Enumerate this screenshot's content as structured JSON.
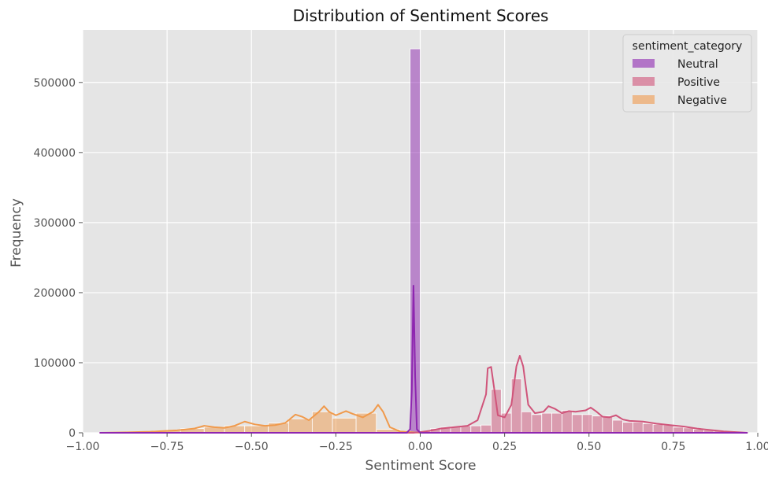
{
  "chart_data": {
    "type": "bar",
    "title": "Distribution of Sentiment Scores",
    "xlabel": "Sentiment Score",
    "ylabel": "Frequency",
    "xlim": [
      -1.0,
      1.0
    ],
    "ylim": [
      0,
      575000
    ],
    "xticks": [
      -1.0,
      -0.75,
      -0.5,
      -0.25,
      0.0,
      0.25,
      0.5,
      0.75,
      1.0
    ],
    "xtick_labels": [
      "−1.00",
      "−0.75",
      "−0.50",
      "−0.25",
      "0.00",
      "0.25",
      "0.50",
      "0.75",
      "1.00"
    ],
    "yticks": [
      0,
      100000,
      200000,
      300000,
      400000,
      500000
    ],
    "ytick_labels": [
      "0",
      "100000",
      "200000",
      "300000",
      "400000",
      "500000"
    ],
    "grid": true,
    "background": "#e5e5e5",
    "legend": {
      "title": "sentiment_category",
      "placement": "top-right",
      "entries": [
        "Neutral",
        "Positive",
        "Negative"
      ]
    },
    "series": [
      {
        "name": "Neutral",
        "color": "#8e26b0",
        "bars": [
          {
            "x0": -0.03,
            "x1": 0.0,
            "value": 548000
          }
        ],
        "kde": [
          [
            -0.95,
            0
          ],
          [
            -0.1,
            0
          ],
          [
            -0.04,
            0
          ],
          [
            -0.03,
            5000
          ],
          [
            -0.025,
            60000
          ],
          [
            -0.02,
            210000
          ],
          [
            -0.015,
            80000
          ],
          [
            -0.01,
            5000
          ],
          [
            0.0,
            0
          ],
          [
            0.97,
            0
          ]
        ]
      },
      {
        "name": "Positive",
        "color": "#d0547a",
        "bars": [
          {
            "x0": 0.0,
            "x1": 0.03,
            "value": 2000
          },
          {
            "x0": 0.03,
            "x1": 0.06,
            "value": 6000
          },
          {
            "x0": 0.06,
            "x1": 0.09,
            "value": 8000
          },
          {
            "x0": 0.09,
            "x1": 0.12,
            "value": 9000
          },
          {
            "x0": 0.12,
            "x1": 0.15,
            "value": 10000
          },
          {
            "x0": 0.15,
            "x1": 0.18,
            "value": 10000
          },
          {
            "x0": 0.18,
            "x1": 0.21,
            "value": 11000
          },
          {
            "x0": 0.21,
            "x1": 0.24,
            "value": 62000
          },
          {
            "x0": 0.24,
            "x1": 0.27,
            "value": 28000
          },
          {
            "x0": 0.27,
            "x1": 0.3,
            "value": 77000
          },
          {
            "x0": 0.3,
            "x1": 0.33,
            "value": 30000
          },
          {
            "x0": 0.33,
            "x1": 0.36,
            "value": 26000
          },
          {
            "x0": 0.36,
            "x1": 0.39,
            "value": 28000
          },
          {
            "x0": 0.39,
            "x1": 0.42,
            "value": 28000
          },
          {
            "x0": 0.42,
            "x1": 0.45,
            "value": 32000
          },
          {
            "x0": 0.45,
            "x1": 0.48,
            "value": 26000
          },
          {
            "x0": 0.48,
            "x1": 0.51,
            "value": 26000
          },
          {
            "x0": 0.51,
            "x1": 0.54,
            "value": 24000
          },
          {
            "x0": 0.54,
            "x1": 0.57,
            "value": 24000
          },
          {
            "x0": 0.57,
            "x1": 0.6,
            "value": 18000
          },
          {
            "x0": 0.6,
            "x1": 0.63,
            "value": 15000
          },
          {
            "x0": 0.63,
            "x1": 0.66,
            "value": 15000
          },
          {
            "x0": 0.66,
            "x1": 0.69,
            "value": 13000
          },
          {
            "x0": 0.69,
            "x1": 0.72,
            "value": 12000
          },
          {
            "x0": 0.72,
            "x1": 0.75,
            "value": 11000
          },
          {
            "x0": 0.75,
            "x1": 0.78,
            "value": 8000
          },
          {
            "x0": 0.78,
            "x1": 0.81,
            "value": 7000
          },
          {
            "x0": 0.81,
            "x1": 0.84,
            "value": 5000
          },
          {
            "x0": 0.84,
            "x1": 0.87,
            "value": 4000
          },
          {
            "x0": 0.87,
            "x1": 0.9,
            "value": 3000
          },
          {
            "x0": 0.9,
            "x1": 0.93,
            "value": 2000
          },
          {
            "x0": 0.93,
            "x1": 0.97,
            "value": 1000
          }
        ],
        "kde": [
          [
            -0.95,
            0
          ],
          [
            -0.02,
            0
          ],
          [
            0.0,
            1000
          ],
          [
            0.03,
            3000
          ],
          [
            0.06,
            6000
          ],
          [
            0.1,
            8000
          ],
          [
            0.14,
            10000
          ],
          [
            0.17,
            18000
          ],
          [
            0.195,
            55000
          ],
          [
            0.2,
            92000
          ],
          [
            0.21,
            94000
          ],
          [
            0.22,
            60000
          ],
          [
            0.23,
            25000
          ],
          [
            0.25,
            22000
          ],
          [
            0.27,
            40000
          ],
          [
            0.285,
            95000
          ],
          [
            0.295,
            110000
          ],
          [
            0.305,
            95000
          ],
          [
            0.32,
            40000
          ],
          [
            0.34,
            28000
          ],
          [
            0.365,
            30000
          ],
          [
            0.38,
            38000
          ],
          [
            0.4,
            34000
          ],
          [
            0.42,
            28000
          ],
          [
            0.44,
            31000
          ],
          [
            0.46,
            30000
          ],
          [
            0.49,
            32000
          ],
          [
            0.505,
            36000
          ],
          [
            0.52,
            31000
          ],
          [
            0.54,
            23000
          ],
          [
            0.56,
            22000
          ],
          [
            0.58,
            25000
          ],
          [
            0.6,
            19000
          ],
          [
            0.62,
            17000
          ],
          [
            0.66,
            16000
          ],
          [
            0.7,
            13000
          ],
          [
            0.74,
            11000
          ],
          [
            0.78,
            9000
          ],
          [
            0.82,
            6000
          ],
          [
            0.86,
            4000
          ],
          [
            0.9,
            2000
          ],
          [
            0.95,
            500
          ],
          [
            0.97,
            0
          ]
        ]
      },
      {
        "name": "Negative",
        "color": "#f09a4c",
        "bars": [
          {
            "x0": -0.95,
            "x1": -0.87,
            "value": 500
          },
          {
            "x0": -0.87,
            "x1": -0.79,
            "value": 1500
          },
          {
            "x0": -0.79,
            "x1": -0.71,
            "value": 3000
          },
          {
            "x0": -0.71,
            "x1": -0.64,
            "value": 6000
          },
          {
            "x0": -0.64,
            "x1": -0.58,
            "value": 8000
          },
          {
            "x0": -0.58,
            "x1": -0.52,
            "value": 10000
          },
          {
            "x0": -0.52,
            "x1": -0.45,
            "value": 10000
          },
          {
            "x0": -0.45,
            "x1": -0.39,
            "value": 14000
          },
          {
            "x0": -0.39,
            "x1": -0.32,
            "value": 20000
          },
          {
            "x0": -0.32,
            "x1": -0.26,
            "value": 30000
          },
          {
            "x0": -0.26,
            "x1": -0.19,
            "value": 21000
          },
          {
            "x0": -0.19,
            "x1": -0.13,
            "value": 28000
          },
          {
            "x0": -0.13,
            "x1": -0.06,
            "value": 5000
          },
          {
            "x0": -0.06,
            "x1": -0.03,
            "value": 2000
          }
        ],
        "kde": [
          [
            -0.95,
            0
          ],
          [
            -0.88,
            500
          ],
          [
            -0.8,
            1500
          ],
          [
            -0.72,
            3500
          ],
          [
            -0.67,
            6000
          ],
          [
            -0.64,
            10000
          ],
          [
            -0.61,
            8000
          ],
          [
            -0.58,
            7000
          ],
          [
            -0.55,
            10000
          ],
          [
            -0.52,
            16000
          ],
          [
            -0.49,
            12000
          ],
          [
            -0.46,
            10000
          ],
          [
            -0.43,
            11000
          ],
          [
            -0.4,
            14000
          ],
          [
            -0.37,
            26000
          ],
          [
            -0.35,
            23000
          ],
          [
            -0.33,
            18000
          ],
          [
            -0.3,
            30000
          ],
          [
            -0.285,
            38000
          ],
          [
            -0.27,
            30000
          ],
          [
            -0.25,
            25000
          ],
          [
            -0.22,
            31000
          ],
          [
            -0.2,
            27000
          ],
          [
            -0.17,
            22000
          ],
          [
            -0.14,
            30000
          ],
          [
            -0.125,
            40000
          ],
          [
            -0.11,
            30000
          ],
          [
            -0.09,
            8000
          ],
          [
            -0.06,
            2000
          ],
          [
            -0.03,
            1000
          ],
          [
            0.0,
            0
          ],
          [
            0.97,
            0
          ]
        ]
      }
    ]
  }
}
